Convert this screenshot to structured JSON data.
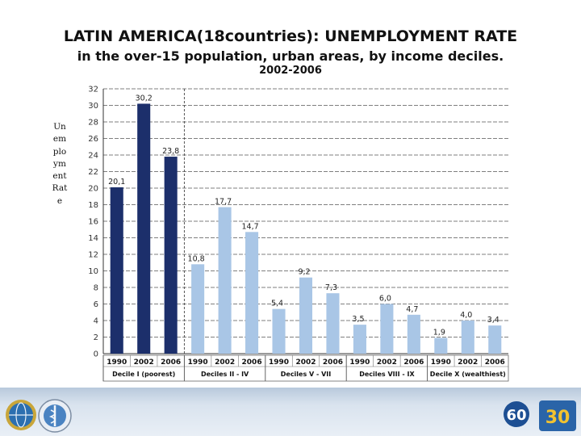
{
  "page": {
    "title": "LATIN AMERICA(18countries): UNEMPLOYMENT RATE",
    "subtitle": "in the over-15 population, urban areas, by income deciles.",
    "period": "2002-2006",
    "ylabel": "Unemployment Rate"
  },
  "footer": {
    "logo_left_1": "globe-seal-icon",
    "logo_left_2": "health-seal-icon",
    "logo_right_60": "60",
    "logo_right_30": "30"
  },
  "chart_data": {
    "type": "bar",
    "title": "",
    "xlabel": "",
    "ylabel": "Unemployment Rate",
    "ylim": [
      0,
      32
    ],
    "yticks": [
      0,
      2,
      4,
      6,
      8,
      10,
      12,
      14,
      16,
      18,
      20,
      22,
      24,
      26,
      28,
      30,
      32
    ],
    "grid": "horizontal dashed",
    "categories": [
      "1990",
      "2002",
      "2006",
      "1990",
      "2002",
      "2006",
      "1990",
      "2002",
      "2006",
      "1990",
      "2002",
      "2006",
      "1990",
      "2002",
      "2006"
    ],
    "values": [
      20.1,
      30.2,
      23.8,
      10.8,
      17.7,
      14.7,
      5.4,
      9.2,
      7.3,
      3.5,
      6.0,
      4.7,
      1.9,
      4.0,
      3.4
    ],
    "data_labels": [
      "20,1",
      "30,2",
      "23,8",
      "10,8",
      "17,7",
      "14,7",
      "5,4",
      "9,2",
      "7,3",
      "3,5",
      "6,0",
      "4,7",
      "1,9",
      "4,0",
      "3,4"
    ],
    "groups": [
      {
        "name": "Decile I (poorest)",
        "start": 0,
        "count": 3,
        "color": "#1c2f6b"
      },
      {
        "name": "Deciles II - IV",
        "start": 3,
        "count": 3,
        "color": "#a9c6e6"
      },
      {
        "name": "Deciles V - VII",
        "start": 6,
        "count": 3,
        "color": "#a9c6e6"
      },
      {
        "name": "Deciles VIII - IX",
        "start": 9,
        "count": 3,
        "color": "#a9c6e6"
      },
      {
        "name": "Decile X (wealthiest)",
        "start": 12,
        "count": 3,
        "color": "#a9c6e6"
      }
    ]
  }
}
